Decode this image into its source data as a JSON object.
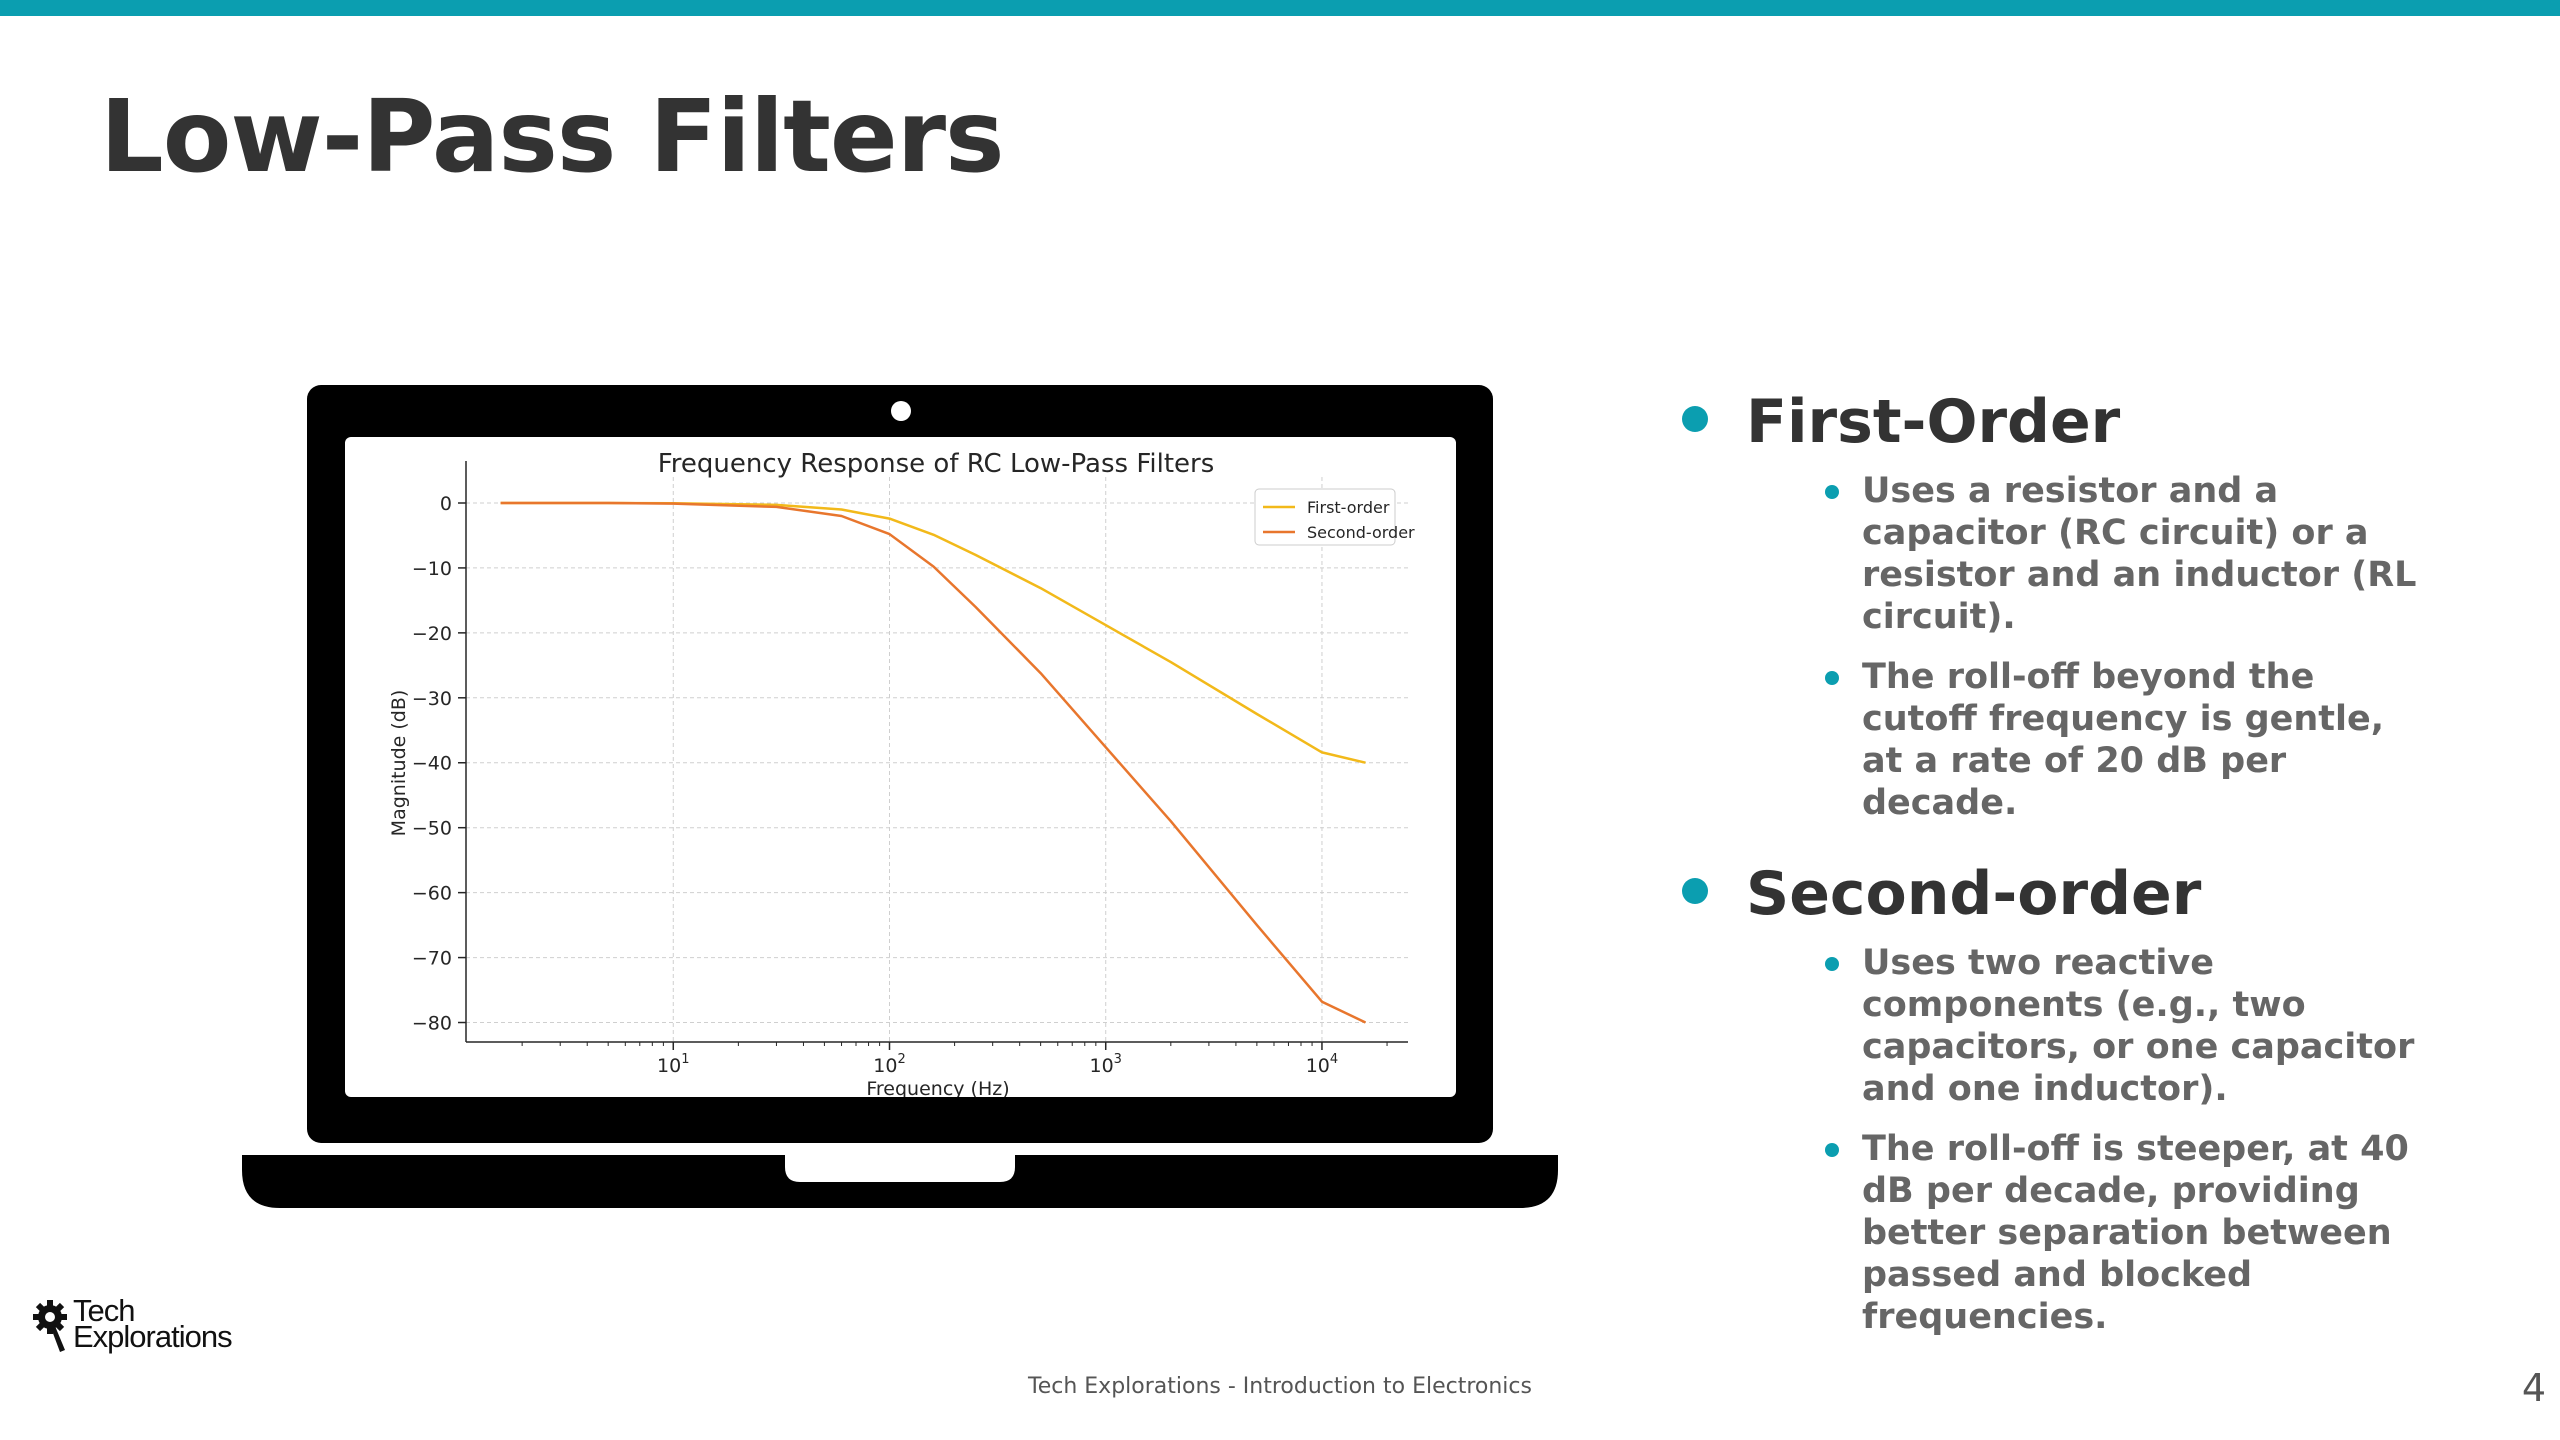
{
  "slide": {
    "title": "Low-Pass Filters",
    "footer": "Tech Explorations - Introduction to Electronics",
    "page_number": "4",
    "logo": {
      "line1": "Tech",
      "line2": "Explorations"
    },
    "accent_color": "#0b9eb0"
  },
  "bullets": [
    {
      "heading": "First-Order",
      "items": [
        "Uses a resistor and a capacitor (RC circuit) or a resistor and an inductor (RL circuit).",
        "The roll-off beyond the cutoff frequency is gentle, at a rate of 20 dB per decade."
      ]
    },
    {
      "heading": "Second-order",
      "items": [
        "Uses two reactive components (e.g., two capacitors, or one capacitor and one inductor).",
        "The roll-off is steeper, at 40 dB per decade, providing better separation between passed and blocked frequencies."
      ]
    }
  ],
  "chart_data": {
    "type": "line",
    "title": "Frequency Response of RC Low-Pass Filters",
    "xlabel": "Frequency (Hz)",
    "ylabel": "Magnitude (dB)",
    "xscale": "log",
    "xlim": [
      1.1,
      25000
    ],
    "ylim": [
      -83,
      4
    ],
    "xticks": [
      {
        "base": "10",
        "exp": "1",
        "value": 10
      },
      {
        "base": "10",
        "exp": "2",
        "value": 100
      },
      {
        "base": "10",
        "exp": "3",
        "value": 1000
      },
      {
        "base": "10",
        "exp": "4",
        "value": 10000
      }
    ],
    "yticks": [
      {
        "label": "0",
        "value": 0
      },
      {
        "label": "−10",
        "value": -10
      },
      {
        "label": "−20",
        "value": -20
      },
      {
        "label": "−30",
        "value": -30
      },
      {
        "label": "−40",
        "value": -40
      },
      {
        "label": "−50",
        "value": -50
      },
      {
        "label": "−60",
        "value": -60
      },
      {
        "label": "−70",
        "value": -70
      },
      {
        "label": "−80",
        "value": -80
      }
    ],
    "grid": true,
    "legend_position": "top-right",
    "x": [
      1.59,
      5,
      10,
      30,
      60,
      100,
      160,
      250,
      500,
      1000,
      2000,
      5000,
      10000,
      15900
    ],
    "series": [
      {
        "name": "First-order",
        "color": "#f2b91a",
        "values": [
          0,
          0,
          -0.04,
          -0.3,
          -1.0,
          -2.4,
          -4.9,
          -8.0,
          -13.1,
          -18.8,
          -24.5,
          -32.5,
          -38.4,
          -40.0
        ]
      },
      {
        "name": "Second-order",
        "color": "#e8762d",
        "values": [
          0,
          0,
          -0.1,
          -0.6,
          -2.0,
          -4.8,
          -9.8,
          -16.0,
          -26.2,
          -37.6,
          -49.0,
          -65.0,
          -76.8,
          -80.0
        ]
      }
    ]
  }
}
